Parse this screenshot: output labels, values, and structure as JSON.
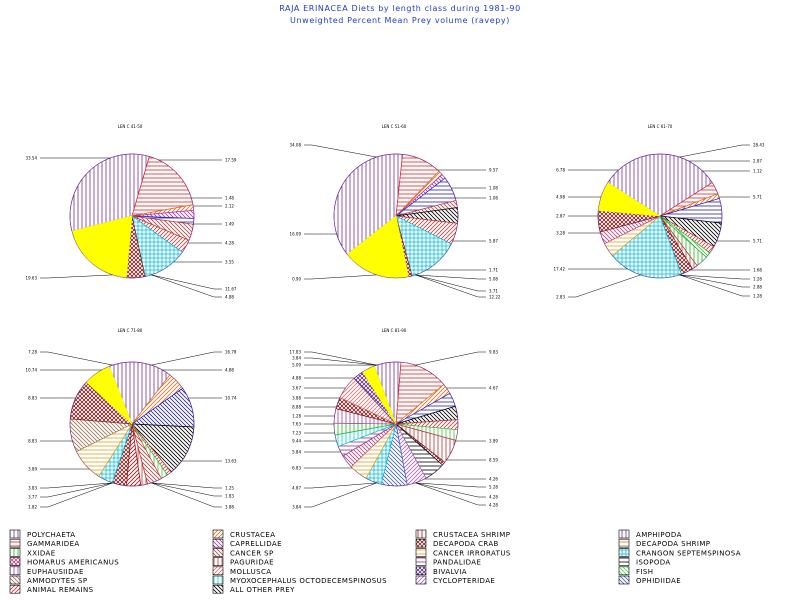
{
  "title": "RAJA ERINACEA Diets by length class during 1981-90",
  "subtitle": "Unweighted Percent Mean Prey volume (ravepy)",
  "categories": [
    {
      "name": "POLYCHAETA",
      "color": "#7030a0",
      "pattern": "vert"
    },
    {
      "name": "CRUSTACEA",
      "color": "#e07020",
      "pattern": "diagR"
    },
    {
      "name": "CRUSTACEA SHRIMP",
      "color": "#a01010",
      "pattern": "vert"
    },
    {
      "name": "AMPHIPODA",
      "color": "#7030a0",
      "pattern": "vert"
    },
    {
      "name": "GAMMARIDEA",
      "color": "#e02020",
      "pattern": "horiz"
    },
    {
      "name": "CAPRELLIDAE",
      "color": "#b030b0",
      "pattern": "diagL"
    },
    {
      "name": "DECAPODA CRAB",
      "color": "#802020",
      "pattern": "cross"
    },
    {
      "name": "DECAPODA SHRIMP",
      "color": "#e07020",
      "pattern": "horiz"
    },
    {
      "name": "XXIDAE",
      "color": "#20b020",
      "pattern": "vert"
    },
    {
      "name": "CANCER SP",
      "color": "#c04040",
      "pattern": "diagL"
    },
    {
      "name": "CANCER IRRORATUS",
      "color": "#e0a020",
      "pattern": "horiz"
    },
    {
      "name": "CRANGON SEPTEMSPINOSA",
      "color": "#00c0e0",
      "pattern": "grid"
    },
    {
      "name": "HOMARUS AMERICANUS",
      "color": "#c04080",
      "pattern": "cross"
    },
    {
      "name": "PAGURIDAE",
      "color": "#c03030",
      "pattern": "vert"
    },
    {
      "name": "PANDALIDAE",
      "color": "#903090",
      "pattern": "horiz"
    },
    {
      "name": "ISOPODA",
      "color": "#000000",
      "pattern": "horiz"
    },
    {
      "name": "EUPHAUSIIDAE",
      "color": "#a040a0",
      "pattern": "vert"
    },
    {
      "name": "MOLLUSCA",
      "color": "#e07070",
      "pattern": "diagR"
    },
    {
      "name": "BIVALVIA",
      "color": "#603080",
      "pattern": "cross"
    },
    {
      "name": "FISH",
      "color": "#40e040",
      "pattern": "diagL"
    },
    {
      "name": "AMMODYTES SP",
      "color": "#a07050",
      "pattern": "diagL"
    },
    {
      "name": "MYOXOCEPHALUS OCTODECEMSPINOSUS",
      "color": "#00d0d0",
      "pattern": "vert"
    },
    {
      "name": "CYCLOPTERIDAE",
      "color": "#b060c0",
      "pattern": "diagR"
    },
    {
      "name": "OPHIDIIDAE",
      "color": "#4060c0",
      "pattern": "diagL"
    },
    {
      "name": "ANIMAL REMAINS",
      "color": "#c03030",
      "pattern": "diagR"
    },
    {
      "name": "ALL OTHER PREY",
      "color": "#000000",
      "pattern": "diagL"
    }
  ],
  "chart_data": [
    {
      "type": "pie",
      "title": "LEN C 41-50",
      "labels": [
        "33.54",
        "17.59",
        "1.48",
        "2.12",
        "1.49",
        "4.28",
        "3.55",
        "11.67",
        "4.88",
        "19.63"
      ],
      "slices": [
        {
          "label": "33.54",
          "value": 33.54,
          "fill": "#7030a0",
          "pattern": "vert",
          "angle_from_top": -44
        },
        {
          "label": "17.59",
          "value": 17.59,
          "fill": "#e02020",
          "pattern": "horiz",
          "angle_from_top": 40
        },
        {
          "label": "1.48",
          "value": 1.48,
          "fill": "#e07020",
          "pattern": "diagR",
          "angle_from_top": 72
        },
        {
          "label": "2.12",
          "value": 2.12,
          "fill": "#b030b0",
          "pattern": "diagL",
          "angle_from_top": 80
        },
        {
          "label": "1.49",
          "value": 1.49,
          "fill": "#2020c0",
          "pattern": "horiz",
          "angle_from_top": 87
        },
        {
          "label": "4.28",
          "value": 4.28,
          "fill": "#c04040",
          "pattern": "diagL",
          "angle_from_top": 99
        },
        {
          "label": "3.55",
          "value": 3.55,
          "fill": "#c04040",
          "pattern": "diagR",
          "angle_from_top": 113
        },
        {
          "label": "11.67",
          "value": 11.67,
          "fill": "#00c0e0",
          "pattern": "grid",
          "angle_from_top": 141
        },
        {
          "label": "4.88",
          "value": 4.88,
          "fill": "#802020",
          "pattern": "cross",
          "angle_from_top": 170
        },
        {
          "label": "19.63",
          "value": 19.63,
          "fill": "#ffff00",
          "pattern": "solid",
          "angle_from_top": 216
        }
      ]
    },
    {
      "type": "pie",
      "title": "LEN C 51-60",
      "labels": [
        "34.08",
        "9.57",
        "1.08",
        "1.08",
        "5.87",
        "1.71",
        "3.71",
        "5.08",
        "12.22",
        "0.90",
        "16.09"
      ],
      "slices": [
        {
          "label": "34.08",
          "value": 34.08,
          "fill": "#7030a0",
          "pattern": "vert",
          "angle_from_top": -61
        },
        {
          "label": "9.57",
          "value": 9.57,
          "fill": "#e02020",
          "pattern": "horiz",
          "angle_from_top": 44
        },
        {
          "label": "1.08",
          "value": 1.08,
          "fill": "#e07020",
          "pattern": "diagR",
          "angle_from_top": 64
        },
        {
          "label": "1.08",
          "value": 1.08,
          "fill": "#b030b0",
          "pattern": "diagL",
          "angle_from_top": 68
        },
        {
          "label": "5.87",
          "value": 5.87,
          "fill": "#2020c0",
          "pattern": "horiz",
          "angle_from_top": 81
        },
        {
          "label": "1.71",
          "value": 1.71,
          "fill": "#c04040",
          "pattern": "diagL",
          "angle_from_top": 95
        },
        {
          "label": "3.71",
          "value": 3.71,
          "fill": "#000000",
          "pattern": "diagL",
          "angle_from_top": 119
        },
        {
          "label": "5.08",
          "value": 5.08,
          "fill": "#c04040",
          "pattern": "diagR",
          "angle_from_top": 137
        },
        {
          "label": "12.22",
          "value": 12.22,
          "fill": "#00c0e0",
          "pattern": "grid",
          "angle_from_top": 176
        },
        {
          "label": "0.90",
          "value": 0.9,
          "fill": "#802020",
          "pattern": "cross",
          "angle_from_top": 213
        },
        {
          "label": "16.09",
          "value": 16.09,
          "fill": "#ffff00",
          "pattern": "solid",
          "angle_from_top": 245
        }
      ]
    },
    {
      "type": "pie",
      "title": "LEN C 61-70",
      "labels": [
        "28.43",
        "2.87",
        "1.12",
        "5.71",
        "5.71",
        "1.68",
        "1.28",
        "2.88",
        "1.28",
        "2.83",
        "17.42",
        "3.28",
        "2.87",
        "4.98",
        "6.78"
      ],
      "slices": [
        {
          "label": "28.43",
          "value": 28.43,
          "fill": "#7030a0",
          "pattern": "vert",
          "angle_from_top": 0
        },
        {
          "label": "2.87",
          "value": 2.87,
          "fill": "#e02020",
          "pattern": "horiz",
          "angle_from_top": 55
        },
        {
          "label": "1.12",
          "value": 1.12,
          "fill": "#e07020",
          "pattern": "diagR",
          "angle_from_top": 62
        },
        {
          "label": "5.71",
          "value": 5.71,
          "fill": "#2020c0",
          "pattern": "horiz",
          "angle_from_top": 80
        },
        {
          "label": "5.71",
          "value": 5.71,
          "fill": "#000000",
          "pattern": "diagL",
          "angle_from_top": 108
        },
        {
          "label": "1.68",
          "value": 1.68,
          "fill": "#c04040",
          "pattern": "diagR",
          "angle_from_top": 134
        },
        {
          "label": "1.28",
          "value": 1.28,
          "fill": "#40c040",
          "pattern": "diagL",
          "angle_from_top": 148
        },
        {
          "label": "2.88",
          "value": 2.88,
          "fill": "#20b020",
          "pattern": "vert",
          "angle_from_top": 158
        },
        {
          "label": "1.28",
          "value": 1.28,
          "fill": "#c03030",
          "pattern": "vert",
          "angle_from_top": 168
        },
        {
          "label": "2.83",
          "value": 2.83,
          "fill": "#802020",
          "pattern": "cross",
          "angle_from_top": 180
        },
        {
          "label": "17.42",
          "value": 17.42,
          "fill": "#00c0e0",
          "pattern": "grid",
          "angle_from_top": 215
        },
        {
          "label": "3.28",
          "value": 3.28,
          "fill": "#e0a020",
          "pattern": "horiz",
          "angle_from_top": 248
        },
        {
          "label": "2.87",
          "value": 2.87,
          "fill": "#c04080",
          "pattern": "diagL",
          "angle_from_top": 262
        },
        {
          "label": "4.98",
          "value": 4.98,
          "fill": "#802020",
          "pattern": "cross",
          "angle_from_top": 282
        },
        {
          "label": "6.78",
          "value": 6.78,
          "fill": "#ffff00",
          "pattern": "solid",
          "angle_from_top": 312
        }
      ]
    },
    {
      "type": "pie",
      "title": "LEN C 71-80",
      "labels": [
        "16.78",
        "4.88",
        "10.74",
        "13.63",
        "1.25",
        "1.83",
        "3.88",
        "1.82",
        "3.77",
        "3.83",
        "3.89",
        "8.83",
        "8.83",
        "10.74",
        "7.28"
      ],
      "slices": [
        {
          "label": "16.78",
          "value": 16.78,
          "fill": "#7030a0",
          "pattern": "vert",
          "angle_from_top": 8
        },
        {
          "label": "4.88",
          "value": 4.88,
          "fill": "#e07020",
          "pattern": "diagR",
          "angle_from_top": 50
        },
        {
          "label": "10.74",
          "value": 10.74,
          "fill": "#2020c0",
          "pattern": "diagL",
          "angle_from_top": 78
        },
        {
          "label": "13.63",
          "value": 13.63,
          "fill": "#000000",
          "pattern": "diagL",
          "angle_from_top": 120
        },
        {
          "label": "1.25",
          "value": 1.25,
          "fill": "#c04040",
          "pattern": "diagR",
          "angle_from_top": 150
        },
        {
          "label": "1.83",
          "value": 1.83,
          "fill": "#40c040",
          "pattern": "vert",
          "angle_from_top": 168
        },
        {
          "label": "3.88",
          "value": 3.88,
          "fill": "#c04040",
          "pattern": "diagL",
          "angle_from_top": 183
        },
        {
          "label": "1.82",
          "value": 1.82,
          "fill": "#c03030",
          "pattern": "vert",
          "angle_from_top": 197
        },
        {
          "label": "3.77",
          "value": 3.77,
          "fill": "#a01010",
          "pattern": "diagR",
          "angle_from_top": 208
        },
        {
          "label": "3.83",
          "value": 3.83,
          "fill": "#802020",
          "pattern": "cross",
          "angle_from_top": 222
        },
        {
          "label": "3.89",
          "value": 3.89,
          "fill": "#00c0e0",
          "pattern": "grid",
          "angle_from_top": 236
        },
        {
          "label": "8.83",
          "value": 8.83,
          "fill": "#e0a020",
          "pattern": "horiz",
          "angle_from_top": 258
        },
        {
          "label": "8.83",
          "value": 8.83,
          "fill": "#a07050",
          "pattern": "diagL",
          "angle_from_top": 290
        },
        {
          "label": "10.74",
          "value": 10.74,
          "fill": "#802020",
          "pattern": "cross",
          "angle_from_top": 323
        },
        {
          "label": "7.28",
          "value": 7.28,
          "fill": "#ffff00",
          "pattern": "solid",
          "angle_from_top": 352
        }
      ]
    },
    {
      "type": "pie",
      "title": "LEN C 81-90",
      "labels": [
        "9.83",
        "4.67",
        "3.89",
        "8.59",
        "4.26",
        "5.28",
        "4.28",
        "4.28",
        "3.84",
        "4.87",
        "6.83",
        "5.84",
        "9.44",
        "7.23",
        "7.63",
        "1.28",
        "8.88",
        "3.88",
        "3.67",
        "4.88",
        "5.09",
        "3.84",
        "17.83"
      ],
      "slices": [
        {
          "label": "9.83",
          "value": 9.83,
          "fill": "#7030a0",
          "pattern": "vert",
          "angle_from_top": -8
        },
        {
          "label": "17.83",
          "value": 17.83,
          "fill": "#e02020",
          "pattern": "horiz",
          "angle_from_top": 35
        },
        {
          "label": "3.84",
          "value": 3.84,
          "fill": "#e07020",
          "pattern": "diagR",
          "angle_from_top": 63
        },
        {
          "label": "5.09",
          "value": 5.09,
          "fill": "#2020c0",
          "pattern": "horiz",
          "angle_from_top": 83
        },
        {
          "label": "4.88",
          "value": 4.88,
          "fill": "#000000",
          "pattern": "diagL",
          "angle_from_top": 102
        },
        {
          "label": "3.67",
          "value": 3.67,
          "fill": "#c04040",
          "pattern": "diagR",
          "angle_from_top": 120
        },
        {
          "label": "3.88",
          "value": 3.88,
          "fill": "#40c040",
          "pattern": "vert",
          "angle_from_top": 135
        },
        {
          "label": "8.88",
          "value": 8.88,
          "fill": "#c03030",
          "pattern": "vert",
          "angle_from_top": 150
        },
        {
          "label": "1.28",
          "value": 1.28,
          "fill": "#802020",
          "pattern": "cross",
          "angle_from_top": 168
        },
        {
          "label": "7.63",
          "value": 7.63,
          "fill": "#000000",
          "pattern": "horiz",
          "angle_from_top": 182
        },
        {
          "label": "7.23",
          "value": 7.23,
          "fill": "#b060c0",
          "pattern": "diagR",
          "angle_from_top": 208
        },
        {
          "label": "9.44",
          "value": 9.44,
          "fill": "#4060c0",
          "pattern": "diagL",
          "angle_from_top": 233
        },
        {
          "label": "5.84",
          "value": 5.84,
          "fill": "#00c0e0",
          "pattern": "grid",
          "angle_from_top": 250
        },
        {
          "label": "6.83",
          "value": 6.83,
          "fill": "#e0a020",
          "pattern": "horiz",
          "angle_from_top": 262
        },
        {
          "label": "4.87",
          "value": 4.87,
          "fill": "#c04080",
          "pattern": "diagL",
          "angle_from_top": 270
        },
        {
          "label": "3.84",
          "value": 3.84,
          "fill": "#903090",
          "pattern": "horiz",
          "angle_from_top": 277
        },
        {
          "label": "4.28",
          "value": 4.28,
          "fill": "#00d0d0",
          "pattern": "vert",
          "angle_from_top": 285
        },
        {
          "label": "4.28",
          "value": 4.28,
          "fill": "#20b020",
          "pattern": "vert",
          "angle_from_top": 293
        },
        {
          "label": "5.28",
          "value": 5.28,
          "fill": "#a040a0",
          "pattern": "vert",
          "angle_from_top": 303
        },
        {
          "label": "4.26",
          "value": 4.26,
          "fill": "#802020",
          "pattern": "cross",
          "angle_from_top": 313
        },
        {
          "label": "8.59",
          "value": 8.59,
          "fill": "#e07070",
          "pattern": "diagR",
          "angle_from_top": 325
        },
        {
          "label": "3.89",
          "value": 3.89,
          "fill": "#603080",
          "pattern": "cross",
          "angle_from_top": 338
        },
        {
          "label": "4.67",
          "value": 4.67,
          "fill": "#ffff00",
          "pattern": "solid",
          "angle_from_top": 346
        }
      ]
    }
  ]
}
